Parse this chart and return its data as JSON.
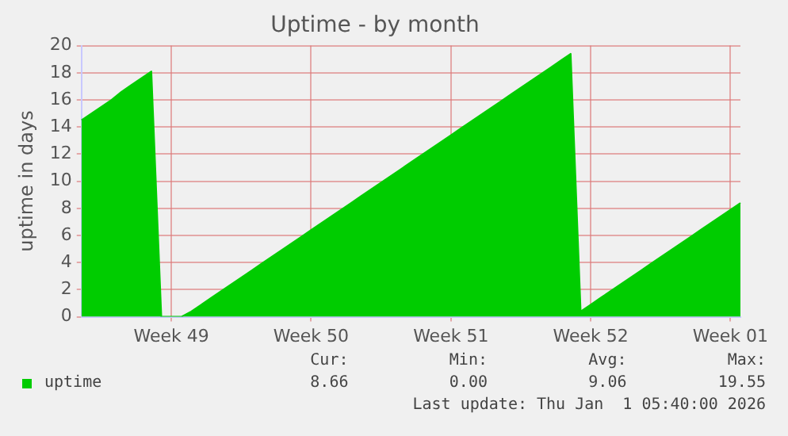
{
  "chart_data": {
    "type": "area",
    "title": "Uptime - by month",
    "ylabel": "uptime in days",
    "categories": [
      null,
      null,
      null,
      null,
      null,
      null,
      null,
      null,
      null,
      "Week 49",
      null,
      null,
      null,
      null,
      null,
      null,
      null,
      null,
      null,
      null,
      null,
      null,
      null,
      "Week 50",
      null,
      null,
      null,
      null,
      null,
      null,
      null,
      null,
      null,
      null,
      null,
      null,
      null,
      "Week 51",
      null,
      null,
      null,
      null,
      null,
      null,
      null,
      null,
      null,
      null,
      null,
      null,
      null,
      "Week 52",
      null,
      null,
      null,
      null,
      null,
      null,
      null,
      null,
      null,
      null,
      null,
      null,
      null,
      "Week 01",
      null
    ],
    "series": [
      {
        "name": "uptime",
        "color": "#00cc00",
        "values": [
          14.5,
          15.0,
          15.5,
          16.0,
          16.6,
          17.1,
          17.6,
          18.1,
          0,
          0,
          0,
          0.4,
          0.9,
          1.4,
          1.9,
          2.4,
          2.9,
          3.4,
          3.9,
          4.4,
          4.9,
          5.4,
          5.9,
          6.4,
          6.9,
          7.4,
          7.9,
          8.4,
          8.9,
          9.4,
          9.9,
          10.4,
          10.9,
          11.4,
          11.9,
          12.4,
          12.9,
          13.4,
          13.9,
          14.4,
          14.9,
          15.4,
          15.9,
          16.4,
          16.9,
          17.4,
          17.9,
          18.4,
          18.9,
          19.4,
          0.4,
          0.9,
          1.4,
          1.9,
          2.4,
          2.9,
          3.4,
          3.9,
          4.4,
          4.9,
          5.4,
          5.9,
          6.4,
          6.9,
          7.4,
          7.9,
          8.4
        ]
      }
    ],
    "ylim": [
      0,
      20
    ],
    "yticks": [
      0,
      2,
      4,
      6,
      8,
      10,
      12,
      14,
      16,
      18,
      20
    ],
    "grid": true,
    "legend": "bottom",
    "marker": "none",
    "annotations": [
      "Cur:",
      "8.66",
      "Min:",
      "0.00",
      "Avg:",
      "9.06",
      "Max:",
      "19.55",
      "Last update: Thu Jan  1 05:40:00 2026"
    ]
  }
}
